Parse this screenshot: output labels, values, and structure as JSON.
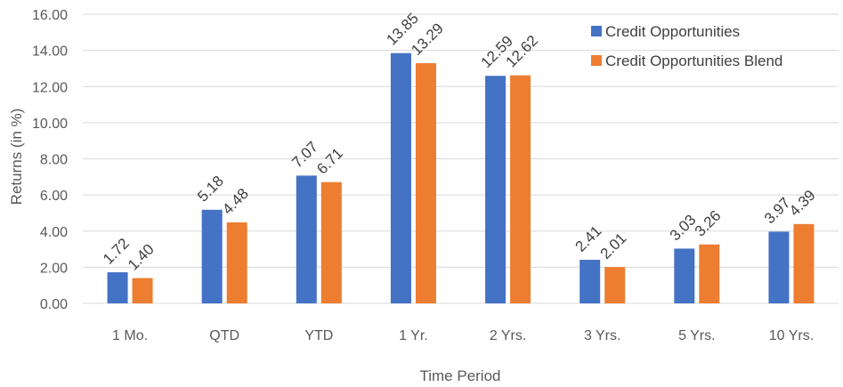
{
  "chart_data": {
    "type": "bar",
    "categories": [
      "1 Mo.",
      "QTD",
      "YTD",
      "1 Yr.",
      "2 Yrs.",
      "3 Yrs.",
      "5 Yrs.",
      "10 Yrs."
    ],
    "series": [
      {
        "name": "Credit Opportunities",
        "values": [
          1.72,
          5.18,
          7.07,
          13.85,
          12.59,
          2.41,
          3.03,
          3.97
        ],
        "color": "#4472c4"
      },
      {
        "name": "Credit Opportunities Blend",
        "values": [
          1.4,
          4.48,
          6.71,
          13.29,
          12.62,
          2.01,
          3.26,
          4.39
        ],
        "color": "#ed7d31"
      }
    ],
    "value_labels": [
      [
        "1.72",
        "5.18",
        "7.07",
        "13.85",
        "12.59",
        "2.41",
        "3.03",
        "3.97"
      ],
      [
        "1.40",
        "4.48",
        "6.71",
        "13.29",
        "12.62",
        "2.01",
        "3.26",
        "4.39"
      ]
    ],
    "xlabel": "Time Period",
    "ylabel": "Returns (in %)",
    "ylim": [
      0,
      16
    ],
    "yticks": [
      "0.00",
      "2.00",
      "4.00",
      "6.00",
      "8.00",
      "10.00",
      "12.00",
      "14.00",
      "16.00"
    ],
    "grid": true,
    "legend_position": "top-right"
  }
}
